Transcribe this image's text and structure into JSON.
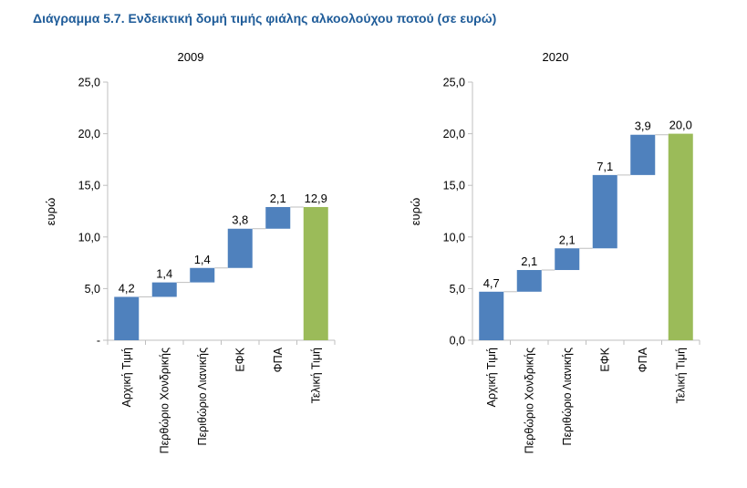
{
  "header": {
    "title": "Διάγραμμα 5.7. Ενδεικτική δομή τιμής φιάλης αλκοολούχου ποτού (σε ευρώ)"
  },
  "chart_data": [
    {
      "type": "bar",
      "subtype": "waterfall",
      "title": "2009",
      "ylabel": "ευρώ",
      "xlabel": "",
      "ylim": [
        0,
        25
      ],
      "ytick_labels": [
        "-",
        "5,0",
        "10,0",
        "15,0",
        "20,0",
        "25,0"
      ],
      "categories": [
        "Αρχική Τιμή",
        "Περθώριο Χονδρικής",
        "Περιθώριο Λιανικής",
        "ΕΦΚ",
        "ΦΠΑ",
        "Τελική Τιμή"
      ],
      "values": [
        4.2,
        1.4,
        1.4,
        3.8,
        2.1,
        12.9
      ],
      "value_labels": [
        "4,2",
        "1,4",
        "1,4",
        "3,8",
        "2,1",
        "12,9"
      ],
      "is_total": [
        false,
        false,
        false,
        false,
        false,
        true
      ],
      "colors": {
        "step": "#4F81BD",
        "total": "#9BBB59",
        "connector": "#BFBFBF"
      }
    },
    {
      "type": "bar",
      "subtype": "waterfall",
      "title": "2020",
      "ylabel": "ευρώ",
      "xlabel": "",
      "ylim": [
        0,
        25
      ],
      "ytick_labels": [
        "0,0",
        "5,0",
        "10,0",
        "15,0",
        "20,0",
        "25,0"
      ],
      "categories": [
        "Αρχική Τιμή",
        "Περθώριο Χονδρικής",
        "Περιθώριο Λιανικής",
        "ΕΦΚ",
        "ΦΠΑ",
        "Τελική Τιμή"
      ],
      "values": [
        4.7,
        2.1,
        2.1,
        7.1,
        3.9,
        20.0
      ],
      "value_labels": [
        "4,7",
        "2,1",
        "2,1",
        "7,1",
        "3,9",
        "20,0"
      ],
      "is_total": [
        false,
        false,
        false,
        false,
        false,
        true
      ],
      "colors": {
        "step": "#4F81BD",
        "total": "#9BBB59",
        "connector": "#BFBFBF"
      }
    }
  ]
}
